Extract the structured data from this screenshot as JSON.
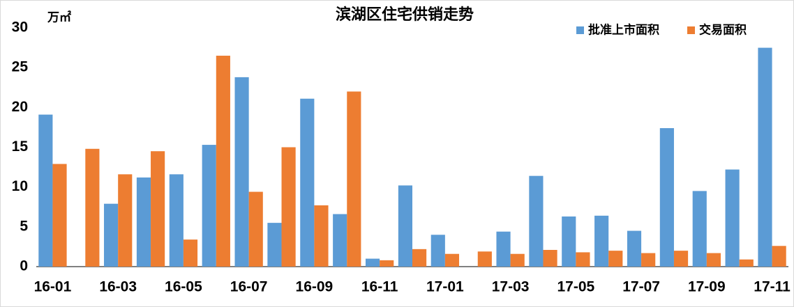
{
  "chart_data": {
    "type": "bar",
    "title": "滨湖区住宅供销走势",
    "y_unit": "万㎡",
    "categories": [
      "16-01",
      null,
      "16-03",
      null,
      "16-05",
      null,
      "16-07",
      null,
      "16-09",
      null,
      "16-11",
      null,
      "17-01",
      null,
      "17-03",
      null,
      "17-05",
      null,
      "17-07",
      null,
      "17-09",
      null,
      "17-11"
    ],
    "series": [
      {
        "name": "批准上市面积",
        "color": "#5b9bd5",
        "values": [
          19.1,
          0,
          7.9,
          11.2,
          11.6,
          15.3,
          23.8,
          5.5,
          21.1,
          6.6,
          1.0,
          10.2,
          4.0,
          0,
          4.4,
          11.4,
          6.3,
          6.4,
          4.5,
          17.4,
          9.5,
          12.2,
          27.5
        ]
      },
      {
        "name": "交易面积",
        "color": "#ed7d31",
        "values": [
          12.9,
          14.8,
          11.6,
          14.5,
          3.4,
          26.5,
          9.4,
          15.0,
          7.7,
          22.0,
          0.8,
          2.2,
          1.6,
          1.9,
          1.6,
          2.1,
          1.8,
          2.0,
          1.7,
          2.0,
          1.7,
          0.9,
          2.6
        ]
      }
    ],
    "ylim": [
      0,
      30
    ],
    "yticks": [
      0,
      5,
      10,
      15,
      20,
      25,
      30
    ],
    "grid": false,
    "legend": "top-right"
  }
}
